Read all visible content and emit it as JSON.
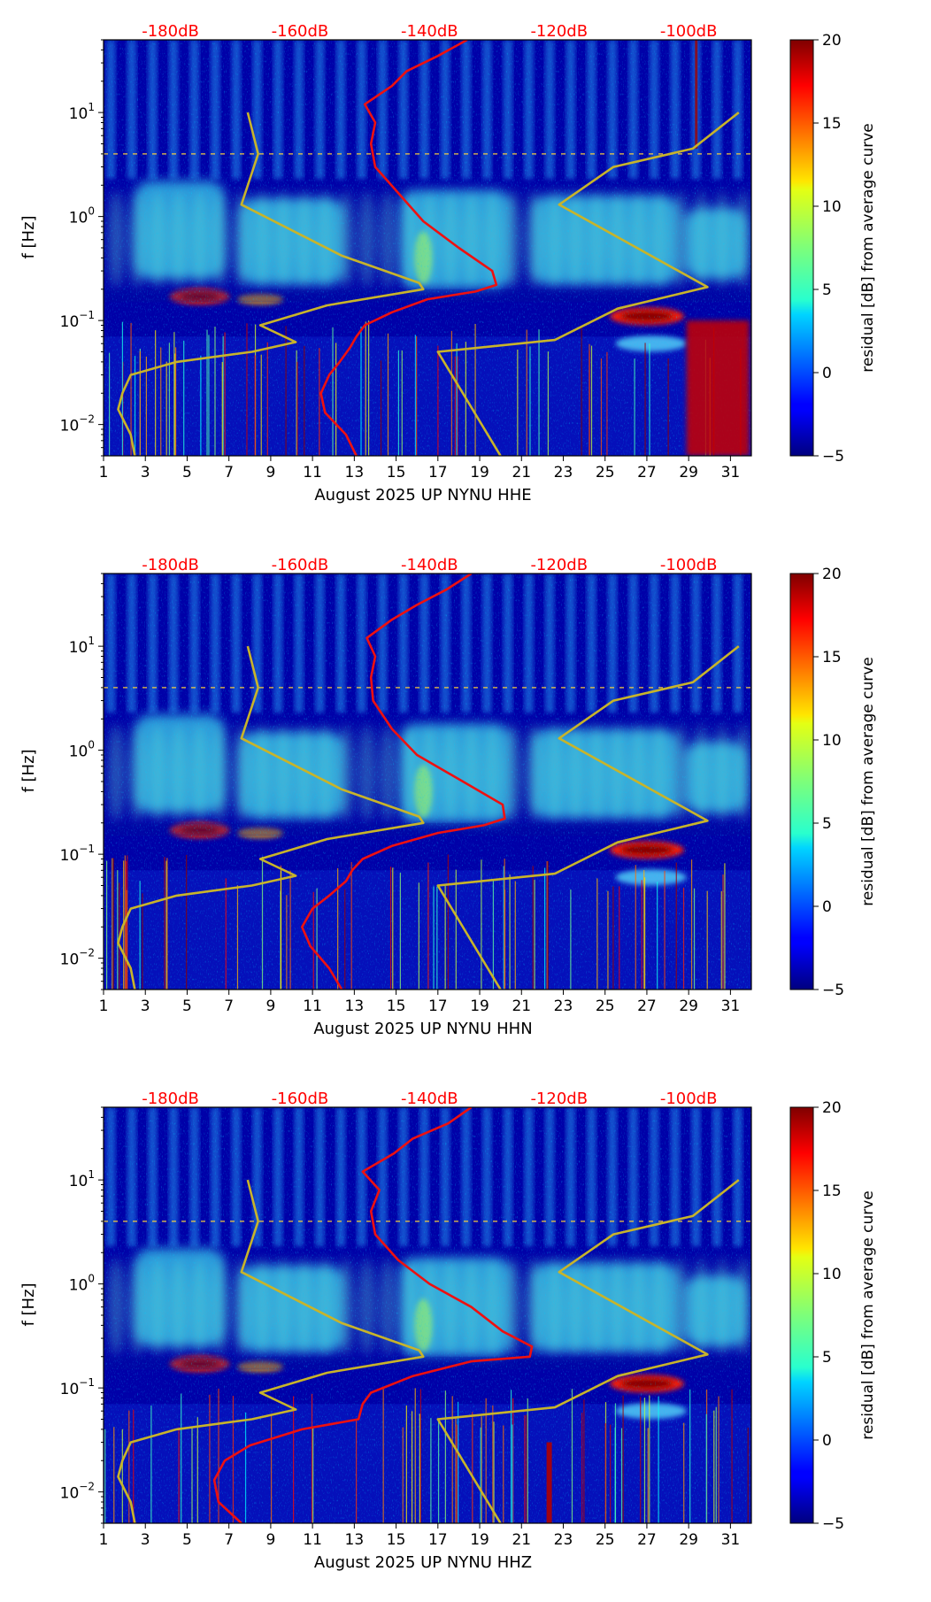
{
  "chart_data": [
    {
      "type": "heatmap",
      "channel": "HHE",
      "xlabel": "August 2025 UP NYNU  HHE",
      "ylabel": "f [Hz]",
      "x_ticks": [
        "1",
        "3",
        "5",
        "7",
        "9",
        "11",
        "13",
        "15",
        "17",
        "19",
        "21",
        "23",
        "25",
        "27",
        "29",
        "31"
      ],
      "x_tick_values": [
        1,
        3,
        5,
        7,
        9,
        11,
        13,
        15,
        17,
        19,
        21,
        23,
        25,
        27,
        29,
        31
      ],
      "xlim": [
        1,
        32
      ],
      "y_ticks": [
        {
          "base": "10",
          "exp": "1",
          "value": 10
        },
        {
          "base": "10",
          "exp": "0",
          "value": 1
        },
        {
          "base": "10",
          "exp": "−1",
          "value": 0.1
        },
        {
          "base": "10",
          "exp": "−2",
          "value": 0.01
        }
      ],
      "ylim": [
        0.005,
        50
      ],
      "db_labels": [
        "-180dB",
        "-160dB",
        "-140dB",
        "-120dB",
        "-100dB"
      ],
      "db_label_days": [
        4.2,
        10.4,
        16.6,
        22.8,
        29.0
      ],
      "colorbar": {
        "label": "residual [dB] from average curve",
        "ticks": [
          "20",
          "15",
          "10",
          "5",
          "0",
          "−5"
        ],
        "tick_values": [
          20,
          15,
          10,
          5,
          0,
          -5
        ],
        "range": [
          -5,
          20
        ]
      },
      "red_curve": [
        [
          13.1,
          0.005
        ],
        [
          12.6,
          0.008
        ],
        [
          11.6,
          0.013
        ],
        [
          11.4,
          0.02
        ],
        [
          11.8,
          0.03
        ],
        [
          12.3,
          0.04
        ],
        [
          12.8,
          0.055
        ],
        [
          13.1,
          0.07
        ],
        [
          13.5,
          0.09
        ],
        [
          14.8,
          0.12
        ],
        [
          16.5,
          0.16
        ],
        [
          18.8,
          0.19
        ],
        [
          19.8,
          0.22
        ],
        [
          19.6,
          0.3
        ],
        [
          18.0,
          0.5
        ],
        [
          16.3,
          0.9
        ],
        [
          15.2,
          1.6
        ],
        [
          14.0,
          3
        ],
        [
          13.8,
          5
        ],
        [
          14.0,
          8
        ],
        [
          13.5,
          12
        ],
        [
          14.8,
          18
        ],
        [
          15.5,
          25
        ],
        [
          17.0,
          35
        ],
        [
          18.4,
          50
        ]
      ],
      "yellow_curve": [
        [
          2.5,
          0.005
        ],
        [
          2.3,
          0.008
        ],
        [
          1.7,
          0.014
        ],
        [
          1.9,
          0.02
        ],
        [
          2.3,
          0.03
        ],
        [
          4.5,
          0.04
        ],
        [
          8.1,
          0.05
        ],
        [
          10.2,
          0.062
        ],
        [
          8.5,
          0.09
        ],
        [
          11.7,
          0.14
        ],
        [
          16.3,
          0.2
        ],
        [
          16.1,
          0.23
        ],
        [
          12.4,
          0.42
        ],
        [
          7.6,
          1.3
        ],
        [
          8.4,
          4
        ],
        [
          7.9,
          10
        ],
        [
          null,
          null
        ],
        [
          20.0,
          0.005
        ],
        [
          17.0,
          0.05
        ],
        [
          22.6,
          0.065
        ],
        [
          25.6,
          0.13
        ],
        [
          29.9,
          0.21
        ],
        [
          22.8,
          1.3
        ],
        [
          25.4,
          3
        ],
        [
          29.2,
          4.5
        ],
        [
          31.4,
          10
        ]
      ]
    },
    {
      "type": "heatmap",
      "channel": "HHN",
      "xlabel": "August 2025 UP NYNU  HHN",
      "ylabel": "f [Hz]",
      "x_ticks": [
        "1",
        "3",
        "5",
        "7",
        "9",
        "11",
        "13",
        "15",
        "17",
        "19",
        "21",
        "23",
        "25",
        "27",
        "29",
        "31"
      ],
      "x_tick_values": [
        1,
        3,
        5,
        7,
        9,
        11,
        13,
        15,
        17,
        19,
        21,
        23,
        25,
        27,
        29,
        31
      ],
      "xlim": [
        1,
        32
      ],
      "y_ticks": [
        {
          "base": "10",
          "exp": "1",
          "value": 10
        },
        {
          "base": "10",
          "exp": "0",
          "value": 1
        },
        {
          "base": "10",
          "exp": "−1",
          "value": 0.1
        },
        {
          "base": "10",
          "exp": "−2",
          "value": 0.01
        }
      ],
      "ylim": [
        0.005,
        50
      ],
      "db_labels": [
        "-180dB",
        "-160dB",
        "-140dB",
        "-120dB",
        "-100dB"
      ],
      "db_label_days": [
        4.2,
        10.4,
        16.6,
        22.8,
        29.0
      ],
      "colorbar": {
        "label": "residual [dB] from average curve",
        "ticks": [
          "20",
          "15",
          "10",
          "5",
          "0",
          "−5"
        ],
        "tick_values": [
          20,
          15,
          10,
          5,
          0,
          -5
        ],
        "range": [
          -5,
          20
        ]
      },
      "red_curve": [
        [
          12.4,
          0.005
        ],
        [
          11.8,
          0.008
        ],
        [
          10.9,
          0.013
        ],
        [
          10.5,
          0.02
        ],
        [
          11.0,
          0.03
        ],
        [
          11.8,
          0.04
        ],
        [
          12.6,
          0.055
        ],
        [
          12.9,
          0.07
        ],
        [
          13.4,
          0.09
        ],
        [
          14.8,
          0.12
        ],
        [
          17.0,
          0.16
        ],
        [
          19.2,
          0.19
        ],
        [
          20.2,
          0.22
        ],
        [
          20.1,
          0.3
        ],
        [
          18.2,
          0.5
        ],
        [
          16.0,
          0.9
        ],
        [
          14.8,
          1.6
        ],
        [
          13.9,
          3
        ],
        [
          13.8,
          5
        ],
        [
          14.0,
          8
        ],
        [
          13.6,
          12
        ],
        [
          14.8,
          18
        ],
        [
          16.0,
          25
        ],
        [
          17.4,
          35
        ],
        [
          18.6,
          50
        ]
      ],
      "yellow_curve": [
        [
          2.5,
          0.005
        ],
        [
          2.3,
          0.008
        ],
        [
          1.7,
          0.014
        ],
        [
          1.9,
          0.02
        ],
        [
          2.3,
          0.03
        ],
        [
          4.5,
          0.04
        ],
        [
          8.1,
          0.05
        ],
        [
          10.2,
          0.062
        ],
        [
          8.5,
          0.09
        ],
        [
          11.7,
          0.14
        ],
        [
          16.3,
          0.2
        ],
        [
          16.1,
          0.23
        ],
        [
          12.4,
          0.42
        ],
        [
          7.6,
          1.3
        ],
        [
          8.4,
          4
        ],
        [
          7.9,
          10
        ],
        [
          null,
          null
        ],
        [
          20.0,
          0.005
        ],
        [
          17.0,
          0.05
        ],
        [
          22.6,
          0.065
        ],
        [
          25.6,
          0.13
        ],
        [
          29.9,
          0.21
        ],
        [
          22.8,
          1.3
        ],
        [
          25.4,
          3
        ],
        [
          29.2,
          4.5
        ],
        [
          31.4,
          10
        ]
      ]
    },
    {
      "type": "heatmap",
      "channel": "HHZ",
      "xlabel": "August 2025 UP NYNU  HHZ",
      "ylabel": "f [Hz]",
      "x_ticks": [
        "1",
        "3",
        "5",
        "7",
        "9",
        "11",
        "13",
        "15",
        "17",
        "19",
        "21",
        "23",
        "25",
        "27",
        "29",
        "31"
      ],
      "x_tick_values": [
        1,
        3,
        5,
        7,
        9,
        11,
        13,
        15,
        17,
        19,
        21,
        23,
        25,
        27,
        29,
        31
      ],
      "xlim": [
        1,
        32
      ],
      "y_ticks": [
        {
          "base": "10",
          "exp": "1",
          "value": 10
        },
        {
          "base": "10",
          "exp": "0",
          "value": 1
        },
        {
          "base": "10",
          "exp": "−1",
          "value": 0.1
        },
        {
          "base": "10",
          "exp": "−2",
          "value": 0.01
        }
      ],
      "ylim": [
        0.005,
        50
      ],
      "db_labels": [
        "-180dB",
        "-160dB",
        "-140dB",
        "-120dB",
        "-100dB"
      ],
      "db_label_days": [
        4.2,
        10.4,
        16.6,
        22.8,
        29.0
      ],
      "colorbar": {
        "label": "residual [dB] from average curve",
        "ticks": [
          "20",
          "15",
          "10",
          "5",
          "0",
          "−5"
        ],
        "tick_values": [
          20,
          15,
          10,
          5,
          0,
          -5
        ],
        "range": [
          -5,
          20
        ]
      },
      "red_curve": [
        [
          7.6,
          0.005
        ],
        [
          6.5,
          0.008
        ],
        [
          6.3,
          0.013
        ],
        [
          6.8,
          0.02
        ],
        [
          8.0,
          0.028
        ],
        [
          10.5,
          0.04
        ],
        [
          13.2,
          0.05
        ],
        [
          13.4,
          0.07
        ],
        [
          13.8,
          0.09
        ],
        [
          15.8,
          0.13
        ],
        [
          18.6,
          0.18
        ],
        [
          21.4,
          0.2
        ],
        [
          21.5,
          0.25
        ],
        [
          20.1,
          0.35
        ],
        [
          18.6,
          0.6
        ],
        [
          16.6,
          1.0
        ],
        [
          15.1,
          1.7
        ],
        [
          14.0,
          3
        ],
        [
          13.8,
          5
        ],
        [
          14.2,
          8
        ],
        [
          13.4,
          12
        ],
        [
          14.9,
          18
        ],
        [
          15.8,
          25
        ],
        [
          17.5,
          35
        ],
        [
          18.6,
          50
        ]
      ],
      "yellow_curve": [
        [
          2.5,
          0.005
        ],
        [
          2.3,
          0.008
        ],
        [
          1.7,
          0.014
        ],
        [
          1.9,
          0.02
        ],
        [
          2.3,
          0.03
        ],
        [
          4.5,
          0.04
        ],
        [
          8.1,
          0.05
        ],
        [
          10.2,
          0.062
        ],
        [
          8.5,
          0.09
        ],
        [
          11.7,
          0.14
        ],
        [
          16.3,
          0.2
        ],
        [
          16.1,
          0.23
        ],
        [
          12.4,
          0.42
        ],
        [
          7.6,
          1.3
        ],
        [
          8.4,
          4
        ],
        [
          7.9,
          10
        ],
        [
          null,
          null
        ],
        [
          20.0,
          0.005
        ],
        [
          17.0,
          0.05
        ],
        [
          22.6,
          0.065
        ],
        [
          25.6,
          0.13
        ],
        [
          29.9,
          0.21
        ],
        [
          22.8,
          1.3
        ],
        [
          25.4,
          3
        ],
        [
          29.2,
          4.5
        ],
        [
          31.4,
          10
        ]
      ]
    }
  ]
}
